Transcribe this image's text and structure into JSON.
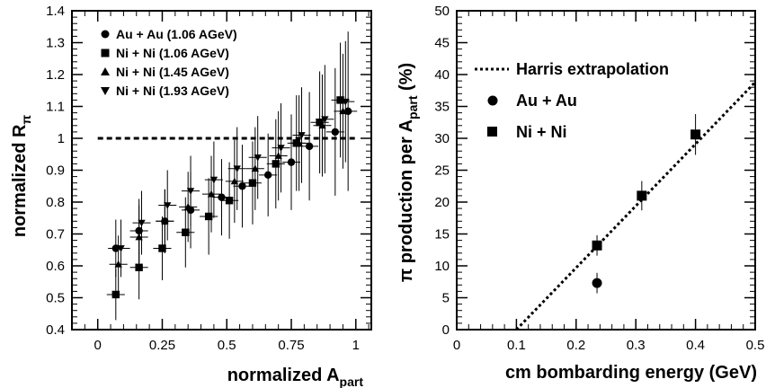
{
  "chart_data": [
    {
      "type": "scatter",
      "xlabel": "normalized A",
      "xlabel_sub": "part",
      "ylabel": "normalized R",
      "ylabel_sub": "π",
      "xlim": [
        -0.1,
        1.06
      ],
      "ylim": [
        0.4,
        1.4
      ],
      "xticks": [
        0,
        0.25,
        0.5,
        0.75,
        1
      ],
      "xtick_labels": [
        "0",
        "0.25",
        "0.5",
        "0.75",
        "1"
      ],
      "yticks": [
        0.4,
        0.5,
        0.6,
        0.7,
        0.8,
        0.9,
        1.0,
        1.1,
        1.2,
        1.3,
        1.4
      ],
      "ytick_labels": [
        "0.4",
        "0.5",
        "0.6",
        "0.7",
        "0.8",
        "0.9",
        "1",
        "1.1",
        "1.2",
        "1.3",
        "1.4"
      ],
      "reference_line": {
        "y": 1.0,
        "x_from": 0,
        "x_to": 1,
        "style": "dashed"
      },
      "legend_position": "top-left",
      "series": [
        {
          "name": "Au + Au (1.06 AGeV)",
          "marker": "circle",
          "x": [
            0.07,
            0.16,
            0.26,
            0.36,
            0.48,
            0.56,
            0.66,
            0.75,
            0.82,
            0.92,
            0.97
          ],
          "y": [
            0.655,
            0.71,
            0.74,
            0.775,
            0.815,
            0.85,
            0.885,
            0.925,
            0.975,
            1.02,
            1.085
          ],
          "xerr": [
            0.03,
            0.035,
            0.035,
            0.035,
            0.035,
            0.035,
            0.035,
            0.035,
            0.035,
            0.035,
            0.035
          ],
          "yerr": [
            0.09,
            0.1,
            0.1,
            0.12,
            0.12,
            0.13,
            0.13,
            0.15,
            0.17,
            0.2,
            0.25
          ]
        },
        {
          "name": "Ni + Ni (1.06 AGeV)",
          "marker": "square",
          "x": [
            0.07,
            0.16,
            0.25,
            0.34,
            0.43,
            0.51,
            0.6,
            0.69,
            0.77,
            0.86,
            0.94
          ],
          "y": [
            0.51,
            0.595,
            0.655,
            0.705,
            0.755,
            0.805,
            0.86,
            0.92,
            0.985,
            1.05,
            1.12
          ],
          "xerr": [
            0.035,
            0.035,
            0.035,
            0.035,
            0.035,
            0.035,
            0.035,
            0.035,
            0.035,
            0.035,
            0.035
          ],
          "yerr": [
            0.08,
            0.1,
            0.1,
            0.11,
            0.12,
            0.12,
            0.13,
            0.14,
            0.15,
            0.16,
            0.18
          ]
        },
        {
          "name": "Ni + Ni (1.45 AGeV)",
          "marker": "triangle-up",
          "x": [
            0.08,
            0.16,
            0.26,
            0.35,
            0.44,
            0.53,
            0.61,
            0.7,
            0.78,
            0.87,
            0.95
          ],
          "y": [
            0.605,
            0.69,
            0.74,
            0.785,
            0.825,
            0.865,
            0.905,
            0.945,
            0.985,
            1.04,
            1.085
          ],
          "xerr": [
            0.035,
            0.035,
            0.035,
            0.035,
            0.035,
            0.035,
            0.035,
            0.035,
            0.035,
            0.035,
            0.035
          ],
          "yerr": [
            0.09,
            0.1,
            0.1,
            0.11,
            0.12,
            0.13,
            0.13,
            0.14,
            0.15,
            0.16,
            0.18
          ]
        },
        {
          "name": "Ni + Ni (1.93 AGeV)",
          "marker": "triangle-down",
          "x": [
            0.09,
            0.17,
            0.27,
            0.36,
            0.45,
            0.54,
            0.62,
            0.71,
            0.79,
            0.88,
            0.96
          ],
          "y": [
            0.655,
            0.735,
            0.79,
            0.835,
            0.87,
            0.905,
            0.94,
            0.97,
            1.01,
            1.06,
            1.115
          ],
          "xerr": [
            0.035,
            0.035,
            0.035,
            0.035,
            0.035,
            0.035,
            0.035,
            0.035,
            0.035,
            0.035,
            0.035
          ],
          "yerr": [
            0.09,
            0.1,
            0.11,
            0.11,
            0.12,
            0.13,
            0.13,
            0.14,
            0.15,
            0.17,
            0.19
          ]
        }
      ]
    },
    {
      "type": "scatter",
      "xlabel": "cm bombarding energy (GeV)",
      "ylabel": "π production per A",
      "ylabel_sub": "part",
      "ylabel_suffix": "(%)",
      "xlim": [
        0,
        0.5
      ],
      "ylim": [
        0,
        50
      ],
      "xticks": [
        0,
        0.1,
        0.2,
        0.3,
        0.4,
        0.5
      ],
      "xtick_labels": [
        "0",
        "0.1",
        "0.2",
        "0.3",
        "0.4",
        "0.5"
      ],
      "yticks": [
        0,
        5,
        10,
        15,
        20,
        25,
        30,
        35,
        40,
        45,
        50
      ],
      "ytick_labels": [
        "0",
        "5",
        "10",
        "15",
        "20",
        "25",
        "30",
        "35",
        "40",
        "45",
        "50"
      ],
      "legend_position": "top-left",
      "series": [
        {
          "name": "Harris extrapolation",
          "type": "line",
          "style": "dotted",
          "x": [
            0.1,
            0.5
          ],
          "y": [
            0,
            38.8
          ]
        },
        {
          "name": "Au + Au",
          "marker": "circle",
          "x": [
            0.235
          ],
          "y": [
            7.3
          ],
          "yerr": [
            1.6
          ]
        },
        {
          "name": "Ni + Ni",
          "marker": "square",
          "x": [
            0.235,
            0.31,
            0.4
          ],
          "y": [
            13.2,
            21.0,
            30.6
          ],
          "yerr": [
            1.6,
            2.3,
            3.2
          ]
        }
      ]
    }
  ]
}
